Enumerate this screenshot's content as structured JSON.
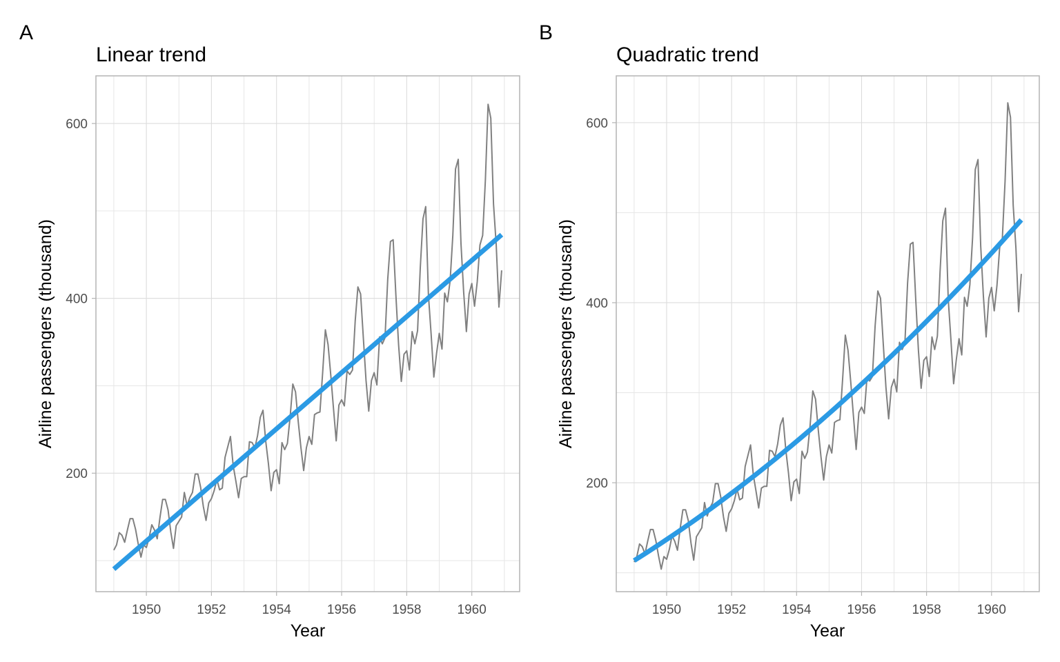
{
  "chart_data": [
    {
      "type": "line",
      "tag": "A",
      "title": "Linear trend",
      "xlabel": "Year",
      "ylabel": "Airline passengers (thousand)",
      "xlim": [
        1948.45,
        1961.47
      ],
      "ylim": [
        64.5,
        654.5
      ],
      "x_ticks": [
        1950,
        1952,
        1954,
        1956,
        1958,
        1960
      ],
      "x_tick_labels": [
        "1950",
        "1952",
        "1954",
        "1956",
        "1958",
        "1960"
      ],
      "x_minor": [
        1949,
        1951,
        1953,
        1955,
        1957,
        1959,
        1961
      ],
      "y_ticks": [
        200,
        400,
        600
      ],
      "y_tick_labels": [
        "200",
        "400",
        "600"
      ],
      "y_minor": [
        100,
        300,
        500
      ],
      "grid": true,
      "legend": "none",
      "series_colors": {
        "observed": "#808080",
        "trend": "#2b9ae4"
      },
      "trend": {
        "kind": "linear",
        "start": [
          1949.0,
          90.3
        ],
        "end": [
          1960.917,
          472.8
        ]
      }
    },
    {
      "type": "line",
      "tag": "B",
      "title": "Quadratic trend",
      "xlabel": "Year",
      "ylabel": "Airline passengers (thousand)",
      "xlim": [
        1948.45,
        1961.47
      ],
      "ylim": [
        79,
        652
      ],
      "x_ticks": [
        1950,
        1952,
        1954,
        1956,
        1958,
        1960
      ],
      "x_tick_labels": [
        "1950",
        "1952",
        "1954",
        "1956",
        "1958",
        "1960"
      ],
      "x_minor": [
        1949,
        1951,
        1953,
        1955,
        1957,
        1959,
        1961
      ],
      "y_ticks": [
        200,
        400,
        600
      ],
      "y_tick_labels": [
        "200",
        "400",
        "600"
      ],
      "y_minor": [
        100,
        300,
        500
      ],
      "grid": true,
      "legend": "none",
      "series_colors": {
        "observed": "#808080",
        "trend": "#2b9ae4"
      },
      "trend": {
        "kind": "quadratic",
        "points": [
          [
            1949.0,
            113.5
          ],
          [
            1955.0,
            277.0
          ],
          [
            1960.917,
            492.0
          ]
        ]
      }
    }
  ],
  "observed_series": {
    "name": "AirPassengers",
    "start_year": 1949,
    "frequency": 12,
    "values": [
      112,
      118,
      132,
      129,
      121,
      135,
      148,
      148,
      136,
      119,
      104,
      118,
      115,
      126,
      141,
      135,
      125,
      149,
      170,
      170,
      158,
      133,
      114,
      140,
      145,
      150,
      178,
      163,
      172,
      178,
      199,
      199,
      184,
      162,
      146,
      166,
      171,
      180,
      193,
      181,
      183,
      218,
      230,
      242,
      209,
      191,
      172,
      194,
      196,
      196,
      236,
      235,
      229,
      243,
      264,
      272,
      237,
      211,
      180,
      201,
      204,
      188,
      235,
      227,
      234,
      264,
      302,
      293,
      259,
      229,
      203,
      229,
      242,
      233,
      267,
      269,
      270,
      315,
      364,
      347,
      312,
      274,
      237,
      278,
      284,
      277,
      317,
      313,
      318,
      374,
      413,
      405,
      355,
      306,
      271,
      306,
      315,
      301,
      356,
      348,
      355,
      422,
      465,
      467,
      404,
      347,
      305,
      336,
      340,
      318,
      362,
      348,
      363,
      435,
      491,
      505,
      404,
      359,
      310,
      337,
      360,
      342,
      406,
      396,
      420,
      472,
      548,
      559,
      463,
      407,
      362,
      405,
      417,
      391,
      419,
      461,
      472,
      535,
      622,
      606,
      508,
      461,
      390,
      432
    ]
  }
}
